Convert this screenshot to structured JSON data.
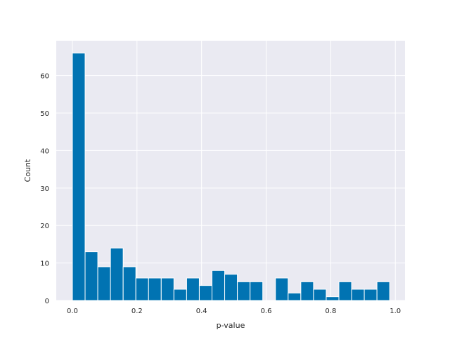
{
  "chart_data": {
    "type": "bar",
    "subtype": "histogram",
    "title": "",
    "xlabel": "p-value",
    "ylabel": "Count",
    "xlim": [
      -0.05,
      1.03
    ],
    "ylim": [
      0,
      69.3
    ],
    "xticks": [
      0.0,
      0.2,
      0.4,
      0.6,
      0.8,
      1.0
    ],
    "xtick_labels": [
      "0.0",
      "0.2",
      "0.4",
      "0.6",
      "0.8",
      "1.0"
    ],
    "yticks": [
      0,
      10,
      20,
      30,
      40,
      50,
      60
    ],
    "ytick_labels": [
      "0",
      "10",
      "20",
      "30",
      "40",
      "50",
      "60"
    ],
    "grid": true,
    "background": "#EAEAF2",
    "bar_color": "#0173B2",
    "bin_edges": [
      0.0,
      0.0393,
      0.0786,
      0.1179,
      0.1572,
      0.1965,
      0.2358,
      0.2751,
      0.3144,
      0.3537,
      0.393,
      0.4323,
      0.4716,
      0.5109,
      0.5502,
      0.5895,
      0.6288,
      0.6681,
      0.7074,
      0.7467,
      0.786,
      0.8253,
      0.8646,
      0.9039,
      0.9432,
      0.9825
    ],
    "values": [
      66,
      13,
      9,
      14,
      9,
      6,
      6,
      6,
      3,
      6,
      4,
      8,
      7,
      5,
      5,
      0,
      6,
      2,
      5,
      3,
      1,
      5,
      3,
      3,
      5
    ]
  }
}
